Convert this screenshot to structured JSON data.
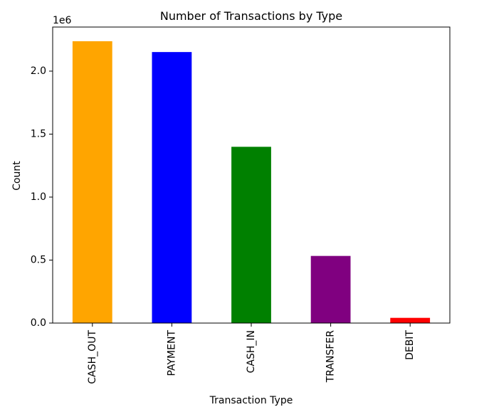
{
  "chart_data": {
    "type": "bar",
    "title": "Number of Transactions by Type",
    "xlabel": "Transaction Type",
    "ylabel": "Count",
    "y_offset_text": "1e6",
    "categories": [
      "CASH_OUT",
      "PAYMENT",
      "CASH_IN",
      "TRANSFER",
      "DEBIT"
    ],
    "values": [
      2237500,
      2151495,
      1399284,
      532909,
      41432
    ],
    "colors": [
      "#ffa500",
      "#0000ff",
      "#008000",
      "#800080",
      "#ff0000"
    ],
    "ylim": [
      0,
      2350000
    ],
    "y_ticks": [
      0,
      500000,
      1000000,
      1500000,
      2000000
    ],
    "y_tick_labels": [
      "0.0",
      "0.5",
      "1.0",
      "1.5",
      "2.0"
    ],
    "grid": false,
    "legend": false
  }
}
